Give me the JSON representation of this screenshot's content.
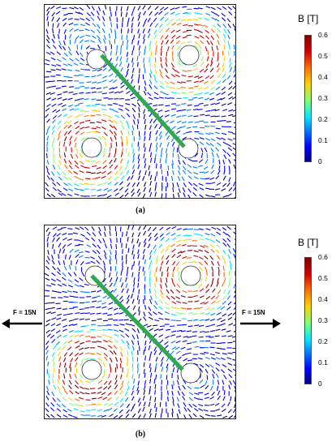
{
  "panels": [
    {
      "caption": "(a)",
      "force_left": "",
      "force_right": ""
    },
    {
      "caption": "(b)",
      "force_left": "F = 15N",
      "force_right": "F = 15N"
    }
  ],
  "colorbar": {
    "title": "B [T]",
    "ticks": [
      "0.6",
      "0.5",
      "0.4",
      "0.3",
      "0.2",
      "0.1",
      "0"
    ],
    "tick_values": [
      0.6,
      0.5,
      0.4,
      0.3,
      0.2,
      0.1,
      0
    ],
    "colors": [
      "#00007f",
      "#0000ff",
      "#0080ff",
      "#00e5ff",
      "#7dff7a",
      "#ffd000",
      "#ff6a00",
      "#d40000",
      "#7f0000"
    ]
  },
  "rod_color": "#2fa84f"
}
